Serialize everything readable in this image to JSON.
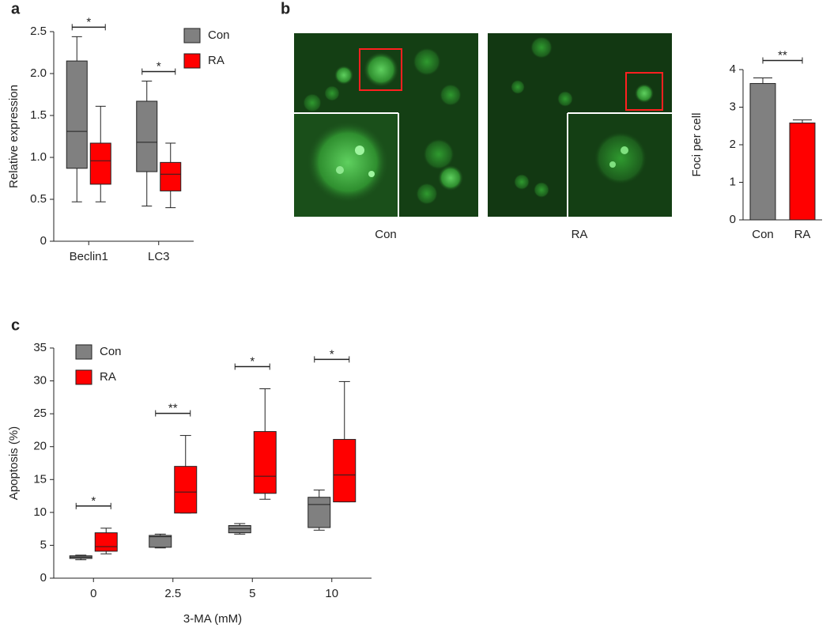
{
  "chart_data": [
    {
      "type": "box",
      "panel": "a",
      "ylabel": "Relative expression",
      "categories": [
        "Beclin1",
        "LC3"
      ],
      "series": [
        {
          "name": "Con",
          "color": "#808080",
          "values": [
            {
              "min": 0.47,
              "q1": 0.87,
              "median": 1.31,
              "q3": 2.15,
              "max": 2.44
            },
            {
              "min": 0.42,
              "q1": 0.83,
              "median": 1.18,
              "q3": 1.67,
              "max": 1.91
            }
          ]
        },
        {
          "name": "RA",
          "color": "#ff0000",
          "values": [
            {
              "min": 0.47,
              "q1": 0.68,
              "median": 0.96,
              "q3": 1.17,
              "max": 1.61
            },
            {
              "min": 0.4,
              "q1": 0.6,
              "median": 0.8,
              "q3": 0.94,
              "max": 1.17
            }
          ]
        }
      ],
      "annotations": [
        "*",
        "*"
      ],
      "ylim": [
        0,
        2.5
      ],
      "yticks": [
        0,
        0.5,
        {
          "value": 1,
          "label": "1.0"
        },
        1.5,
        {
          "value": 2,
          "label": "2.0"
        },
        2.5
      ],
      "legend": "upper right"
    },
    {
      "type": "bar",
      "panel": "b",
      "ylabel": "Foci per cell",
      "image_labels": [
        "Con",
        "RA"
      ],
      "categories": [
        "Con",
        "RA"
      ],
      "values": [
        3.63,
        2.58
      ],
      "errors": [
        0.15,
        0.08
      ],
      "colors": [
        "#808080",
        "#ff0000"
      ],
      "annotation": "**",
      "ylim": [
        0,
        4
      ],
      "yticks": [
        0,
        1,
        2,
        3,
        4
      ]
    },
    {
      "type": "box",
      "panel": "c",
      "ylabel": "Apoptosis (%)",
      "xlabel": "3-MA (mM)",
      "categories": [
        "0",
        "2.5",
        "5",
        "10"
      ],
      "series": [
        {
          "name": "Con",
          "color": "#808080",
          "values": [
            {
              "min": 2.8,
              "q1": 3.0,
              "median": 3.2,
              "q3": 3.4,
              "max": 3.5
            },
            {
              "min": 4.6,
              "q1": 4.7,
              "median": 6.3,
              "q3": 6.5,
              "max": 6.7
            },
            {
              "min": 6.7,
              "q1": 6.9,
              "median": 7.5,
              "q3": 8.0,
              "max": 8.3
            },
            {
              "min": 7.3,
              "q1": 7.7,
              "median": 11.2,
              "q3": 12.3,
              "max": 13.4
            }
          ]
        },
        {
          "name": "RA",
          "color": "#ff0000",
          "values": [
            {
              "min": 3.7,
              "q1": 4.1,
              "median": 4.8,
              "q3": 6.9,
              "max": 7.6
            },
            {
              "min": 9.9,
              "q1": 9.9,
              "median": 13.1,
              "q3": 17.0,
              "max": 21.7
            },
            {
              "min": 12.0,
              "q1": 12.9,
              "median": 15.5,
              "q3": 22.3,
              "max": 28.8
            },
            {
              "min": 11.6,
              "q1": 11.6,
              "median": 15.7,
              "q3": 21.1,
              "max": 29.9
            }
          ]
        }
      ],
      "annotations": [
        "*",
        "**",
        "*",
        "*"
      ],
      "ylim": [
        0,
        35
      ],
      "yticks": [
        0,
        5,
        10,
        15,
        20,
        25,
        30,
        35
      ],
      "legend": "upper left"
    }
  ]
}
